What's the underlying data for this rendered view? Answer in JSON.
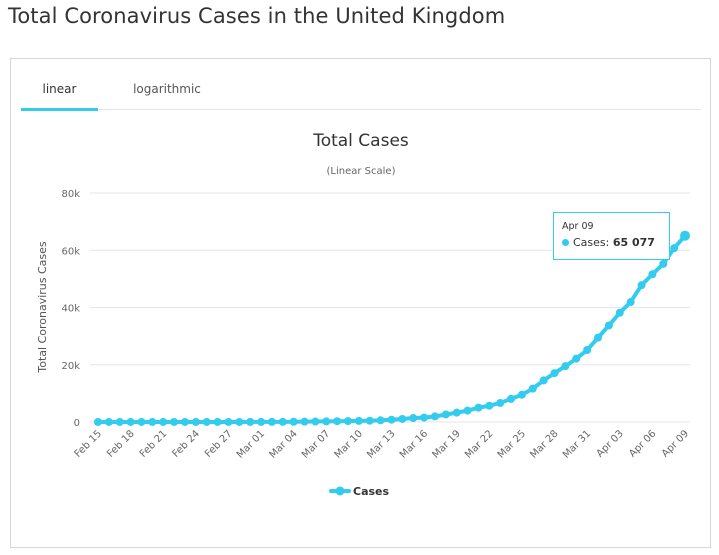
{
  "page": {
    "title": "Total Coronavirus Cases in the United Kingdom"
  },
  "tabs": [
    {
      "label": "linear",
      "active": true
    },
    {
      "label": "logarithmic",
      "active": false
    }
  ],
  "tooltip": {
    "date": "Apr 09",
    "series": "Cases",
    "value": "65 077"
  },
  "colors": {
    "accent": "#33ccee",
    "series": "#33ccee"
  },
  "chart_data": {
    "type": "line",
    "title": "Total Cases",
    "subtitle": "(Linear Scale)",
    "ylabel": "Total Coronavirus Cases",
    "xlabel": "",
    "ylim": [
      0,
      80000
    ],
    "yticks": [
      0,
      20000,
      40000,
      60000,
      80000
    ],
    "ytick_labels": [
      "0",
      "20k",
      "40k",
      "60k",
      "80k"
    ],
    "xtick_labels": [
      "Feb 15",
      "Feb 18",
      "Feb 21",
      "Feb 24",
      "Feb 27",
      "Mar 01",
      "Mar 04",
      "Mar 07",
      "Mar 10",
      "Mar 13",
      "Mar 16",
      "Mar 19",
      "Mar 22",
      "Mar 25",
      "Mar 28",
      "Mar 31",
      "Apr 03",
      "Apr 06",
      "Apr 09"
    ],
    "legend": {
      "position": "bottom-center",
      "entries": [
        "Cases"
      ]
    },
    "grid": true,
    "x": [
      "Feb 15",
      "Feb 16",
      "Feb 17",
      "Feb 18",
      "Feb 19",
      "Feb 20",
      "Feb 21",
      "Feb 22",
      "Feb 23",
      "Feb 24",
      "Feb 25",
      "Feb 26",
      "Feb 27",
      "Feb 28",
      "Feb 29",
      "Mar 01",
      "Mar 02",
      "Mar 03",
      "Mar 04",
      "Mar 05",
      "Mar 06",
      "Mar 07",
      "Mar 08",
      "Mar 09",
      "Mar 10",
      "Mar 11",
      "Mar 12",
      "Mar 13",
      "Mar 14",
      "Mar 15",
      "Mar 16",
      "Mar 17",
      "Mar 18",
      "Mar 19",
      "Mar 20",
      "Mar 21",
      "Mar 22",
      "Mar 23",
      "Mar 24",
      "Mar 25",
      "Mar 26",
      "Mar 27",
      "Mar 28",
      "Mar 29",
      "Mar 30",
      "Mar 31",
      "Apr 01",
      "Apr 02",
      "Apr 03",
      "Apr 04",
      "Apr 05",
      "Apr 06",
      "Apr 07",
      "Apr 08",
      "Apr 09"
    ],
    "series": [
      {
        "name": "Cases",
        "values": [
          9,
          9,
          9,
          9,
          9,
          9,
          9,
          13,
          13,
          13,
          13,
          15,
          16,
          20,
          23,
          36,
          40,
          51,
          85,
          114,
          160,
          206,
          271,
          321,
          373,
          456,
          590,
          797,
          1061,
          1391,
          1543,
          1950,
          2626,
          3269,
          3983,
          5018,
          5683,
          6650,
          8077,
          9529,
          11658,
          14543,
          17089,
          19522,
          22141,
          25150,
          29474,
          33718,
          38168,
          41903,
          47806,
          51608,
          55242,
          60733,
          65077
        ]
      }
    ]
  }
}
